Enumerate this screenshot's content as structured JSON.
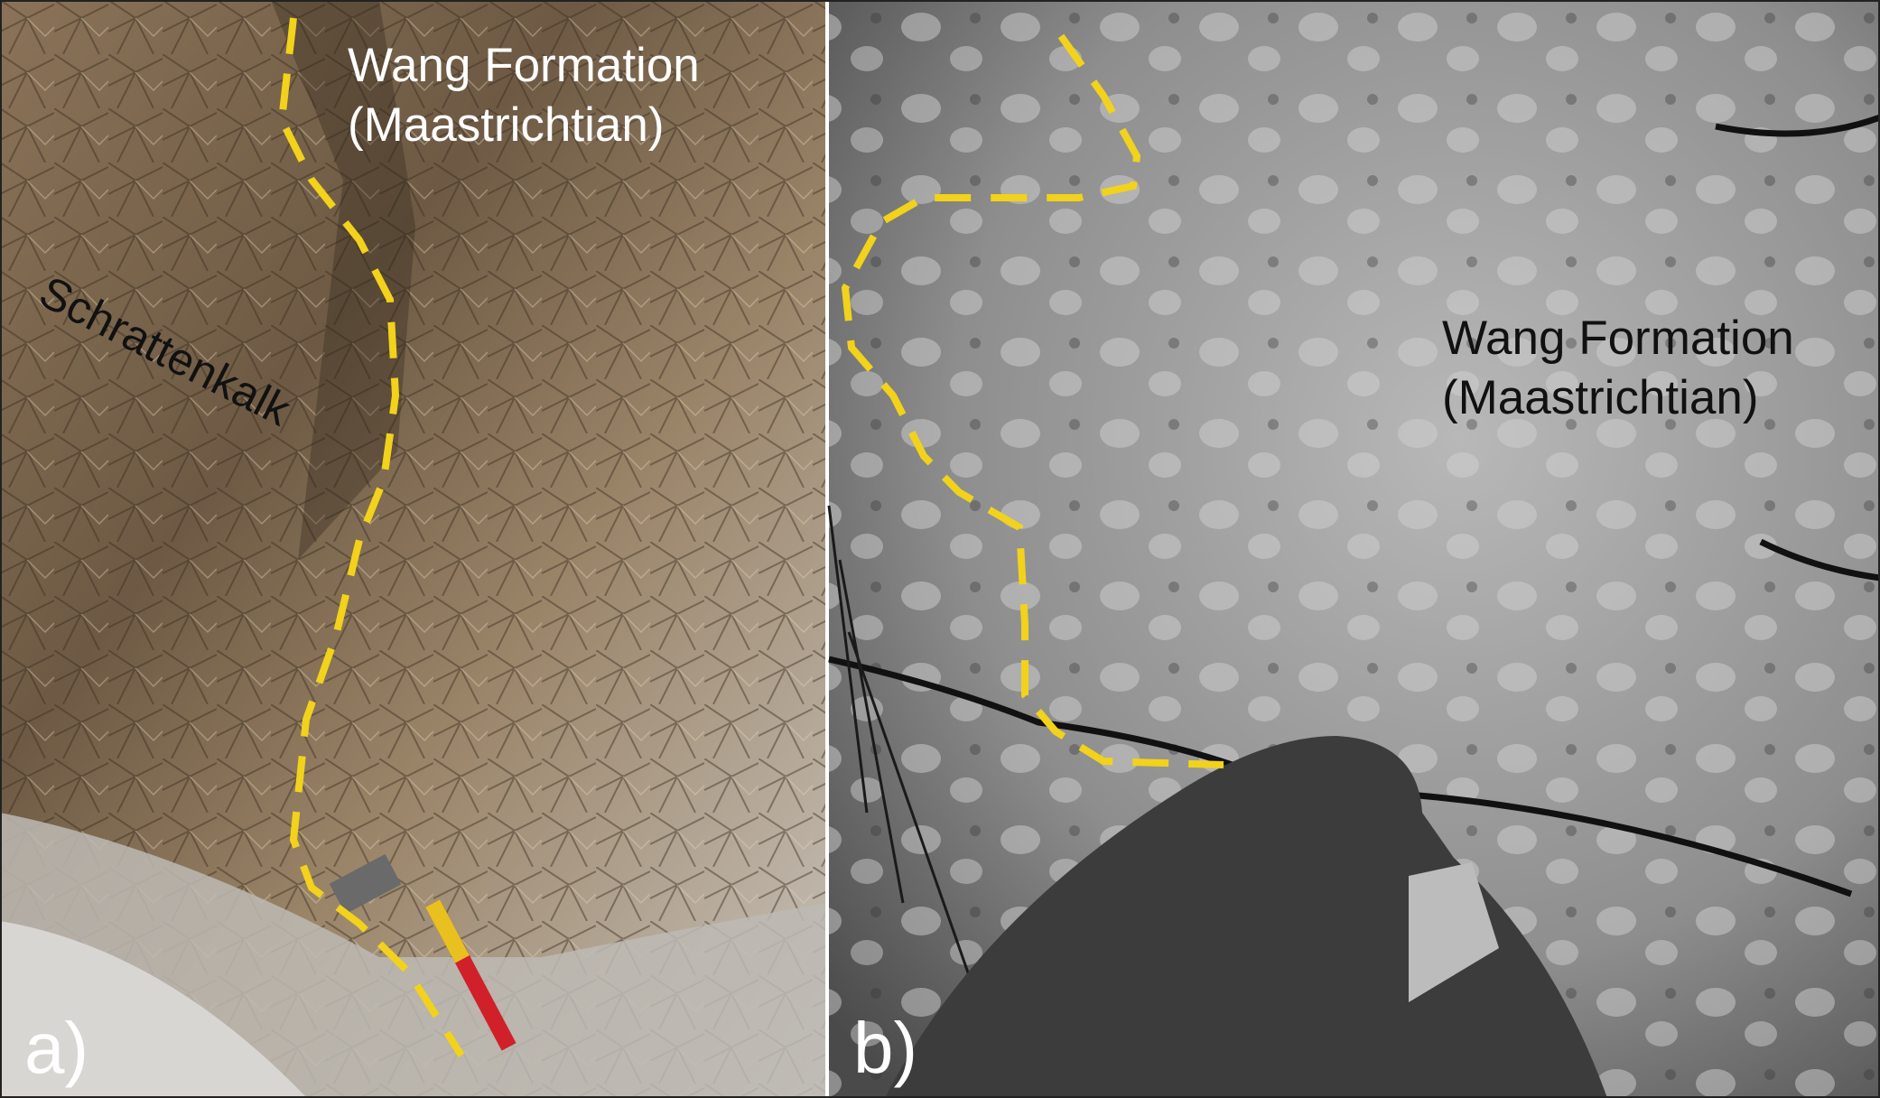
{
  "panels": [
    {
      "label": "a)",
      "formation": {
        "name": "Wang Formation",
        "age": "(Maastrichtian)"
      },
      "unit": "Schrattenkalk"
    },
    {
      "label": "b)",
      "formation": {
        "name": "Wang Formation",
        "age": "(Maastrichtian)"
      }
    }
  ]
}
